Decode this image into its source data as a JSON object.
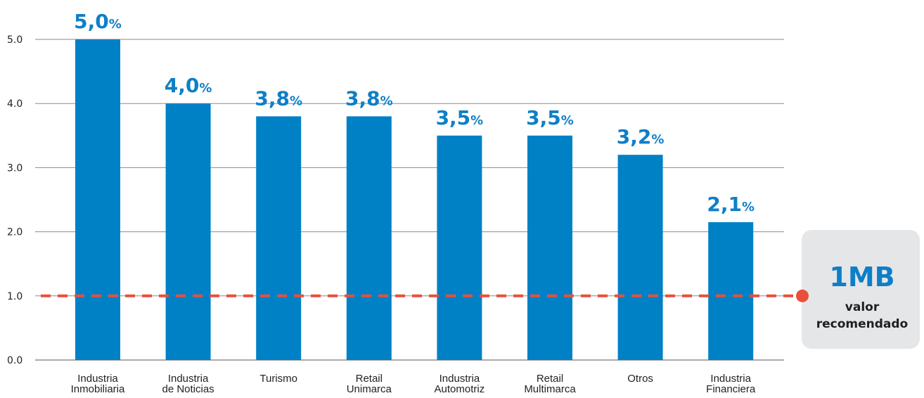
{
  "chart_data": {
    "type": "bar",
    "categories": [
      [
        "Industria",
        "Inmobiliaria"
      ],
      [
        "Industria",
        "de Noticias"
      ],
      [
        "Turismo"
      ],
      [
        "Retail",
        "Unimarca"
      ],
      [
        "Industria",
        "Automotriz"
      ],
      [
        "Retail",
        "Multimarca"
      ],
      [
        "Otros"
      ],
      [
        "Industria",
        "Financiera"
      ]
    ],
    "values": [
      5.0,
      4.0,
      3.8,
      3.8,
      3.5,
      3.5,
      3.2,
      2.15
    ],
    "value_labels": [
      "5,0",
      "4,0",
      "3,8",
      "3,8",
      "3,5",
      "3,5",
      "3,2",
      "2,1"
    ],
    "value_unit": "%",
    "y_ticks": [
      "0.0",
      "1.0",
      "2.0",
      "3.0",
      "4.0",
      "5.0"
    ],
    "ylim": [
      0,
      5.0
    ],
    "grid": true,
    "bar_color": "#0081c6",
    "label_color": "#0e7fc7",
    "reference_line": {
      "value": 1.0,
      "color": "#e8503a",
      "style": "dashed"
    },
    "callout": {
      "value": "1MB",
      "lines": [
        "valor",
        "recomendado"
      ],
      "value_color": "#0e7fc7",
      "background": "#e5e6e8"
    }
  }
}
